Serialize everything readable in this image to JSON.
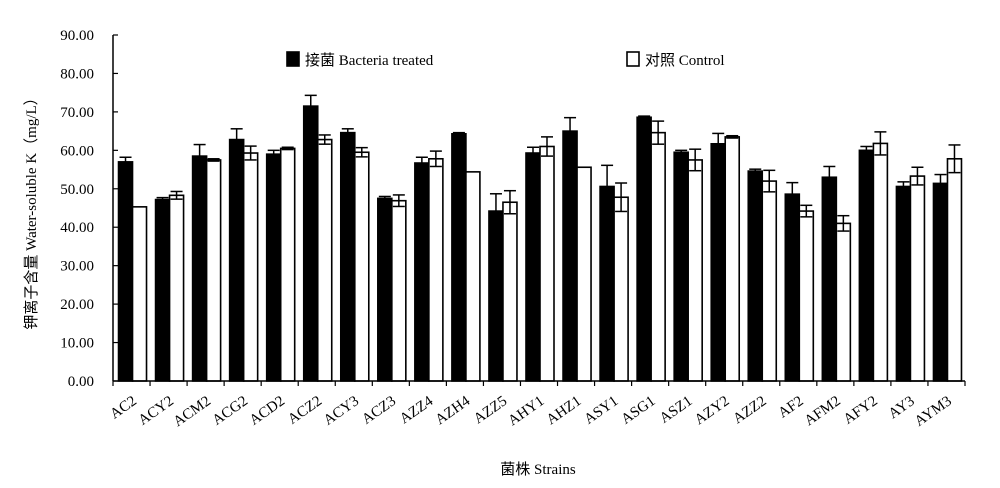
{
  "chart_data": {
    "type": "bar",
    "title": "",
    "xlabel": "菌株 Strains",
    "ylabel": "钾离子含量 Water-soluble K（mg/L）",
    "ylim": [
      0,
      90
    ],
    "yticks": [
      "0.00",
      "10.00",
      "20.00",
      "30.00",
      "40.00",
      "50.00",
      "60.00",
      "70.00",
      "80.00",
      "90.00"
    ],
    "grid": false,
    "legend_position": "top",
    "categories": [
      "AC2",
      "ACY2",
      "ACM2",
      "ACG2",
      "ACD2",
      "ACZ2",
      "ACY3",
      "ACZ3",
      "AZZ4",
      "AZH4",
      "AZZ5",
      "AHY1",
      "AHZ1",
      "ASY1",
      "ASG1",
      "ASZ1",
      "AZY2",
      "AZZ2",
      "AF2",
      "AFM2",
      "AFY2",
      "AY3",
      "AYM3"
    ],
    "series": [
      {
        "name": "接菌 Bacteria treated",
        "color": "#000000",
        "values": [
          57.0,
          47.2,
          58.5,
          62.8,
          59.0,
          71.5,
          64.6,
          47.5,
          56.7,
          64.3,
          44.2,
          59.3,
          65.0,
          50.6,
          68.6,
          59.5,
          61.7,
          54.6,
          48.6,
          53.0,
          60.0,
          50.6,
          51.4
        ],
        "errors": [
          1.2,
          0.5,
          3.0,
          2.8,
          1.0,
          2.8,
          1.0,
          0.5,
          1.5,
          0.3,
          4.5,
          1.5,
          3.5,
          5.5,
          0.3,
          0.5,
          2.7,
          0.5,
          3.0,
          2.8,
          1.0,
          1.2,
          2.3
        ]
      },
      {
        "name": "对照 Control",
        "color": "#ffffff",
        "values": [
          45.3,
          48.3,
          57.5,
          59.3,
          60.5,
          62.8,
          59.5,
          46.9,
          57.8,
          54.4,
          46.5,
          61.0,
          55.6,
          47.8,
          64.6,
          57.5,
          63.5,
          52.0,
          44.2,
          41.0,
          61.8,
          53.3,
          57.8
        ],
        "errors": [
          0.0,
          1.0,
          0.3,
          1.8,
          0.3,
          1.2,
          1.2,
          1.5,
          2.0,
          0.0,
          3.0,
          2.5,
          0.0,
          3.7,
          3.0,
          2.8,
          0.3,
          2.8,
          1.5,
          2.0,
          3.0,
          2.3,
          3.6
        ]
      }
    ]
  }
}
